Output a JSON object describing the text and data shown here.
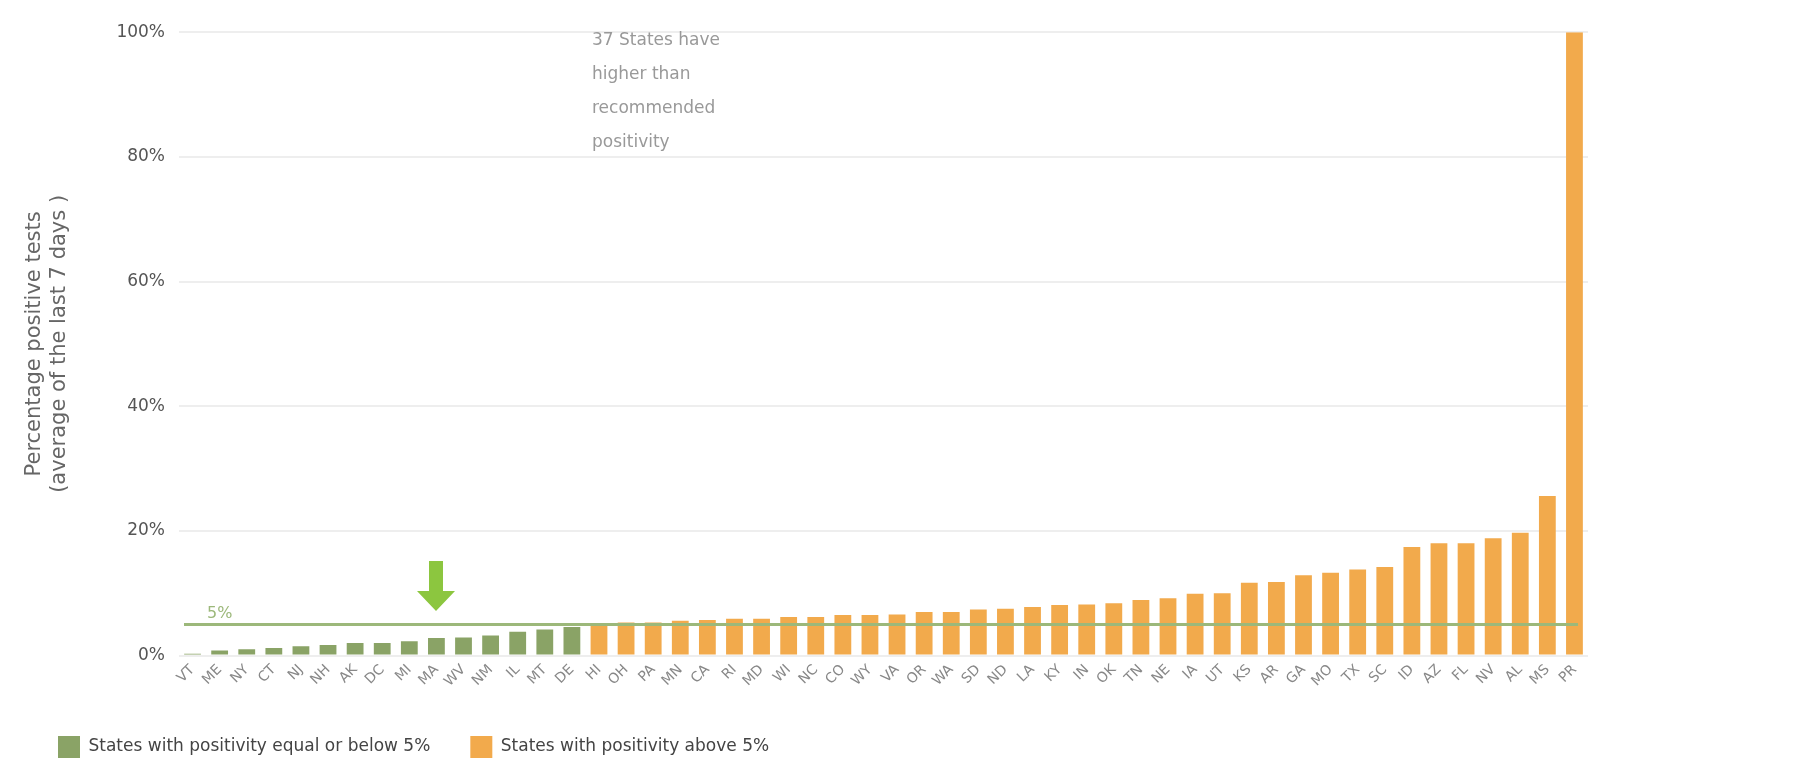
{
  "chart_data": {
    "type": "bar",
    "ylabel": "Percentage positive tests\n(average of the last 7 days )",
    "categories": [
      "VT",
      "ME",
      "NY",
      "CT",
      "NJ",
      "NH",
      "AK",
      "DC",
      "MI",
      "MA",
      "WV",
      "NM",
      "IL",
      "MT",
      "DE",
      "HI",
      "OH",
      "PA",
      "MN",
      "CA",
      "RI",
      "MD",
      "WI",
      "NC",
      "CO",
      "WY",
      "VA",
      "OR",
      "WA",
      "SD",
      "ND",
      "LA",
      "KY",
      "IN",
      "OK",
      "TN",
      "NE",
      "IA",
      "UT",
      "KS",
      "AR",
      "GA",
      "MO",
      "TX",
      "SC",
      "ID",
      "AZ",
      "FL",
      "NV",
      "AL",
      "MS",
      "PR"
    ],
    "series": [
      {
        "name": "States with positivity equal or below 5%",
        "color": "#8aa366",
        "values": [
          0.3,
          0.8,
          1.0,
          1.2,
          1.5,
          1.7,
          2.0,
          2.0,
          2.3,
          2.8,
          2.9,
          3.2,
          3.8,
          4.2,
          4.6,
          null,
          null,
          null,
          null,
          null,
          null,
          null,
          null,
          null,
          null,
          null,
          null,
          null,
          null,
          null,
          null,
          null,
          null,
          null,
          null,
          null,
          null,
          null,
          null,
          null,
          null,
          null,
          null,
          null,
          null,
          null,
          null,
          null,
          null,
          null,
          null,
          null
        ]
      },
      {
        "name": "States with positivity above 5%",
        "color": "#f2aa4c",
        "values": [
          null,
          null,
          null,
          null,
          null,
          null,
          null,
          null,
          null,
          null,
          null,
          null,
          null,
          null,
          null,
          5.1,
          5.3,
          5.3,
          5.6,
          5.7,
          5.9,
          5.9,
          6.2,
          6.2,
          6.5,
          6.5,
          6.6,
          7.0,
          7.0,
          7.4,
          7.5,
          7.8,
          8.1,
          8.2,
          8.4,
          8.9,
          9.2,
          9.9,
          10.0,
          11.7,
          11.8,
          12.9,
          13.3,
          13.8,
          14.2,
          17.4,
          18.0,
          18.0,
          18.8,
          19.7,
          25.6,
          100
        ]
      }
    ],
    "ylim": [
      0,
      100
    ],
    "yticks": [
      {
        "value": 0,
        "label": "0%"
      },
      {
        "value": 20,
        "label": "20%"
      },
      {
        "value": 40,
        "label": "40%"
      },
      {
        "value": 60,
        "label": "60%"
      },
      {
        "value": 80,
        "label": "80%"
      },
      {
        "value": 100,
        "label": "100%"
      }
    ],
    "grid": "y",
    "legend": "bottom",
    "ref_lines": [
      {
        "axis": "y",
        "value": 5,
        "label": "5%",
        "color": "#9cb87a"
      }
    ],
    "annotations": [
      "37 States have higher than recommended positivity"
    ]
  }
}
